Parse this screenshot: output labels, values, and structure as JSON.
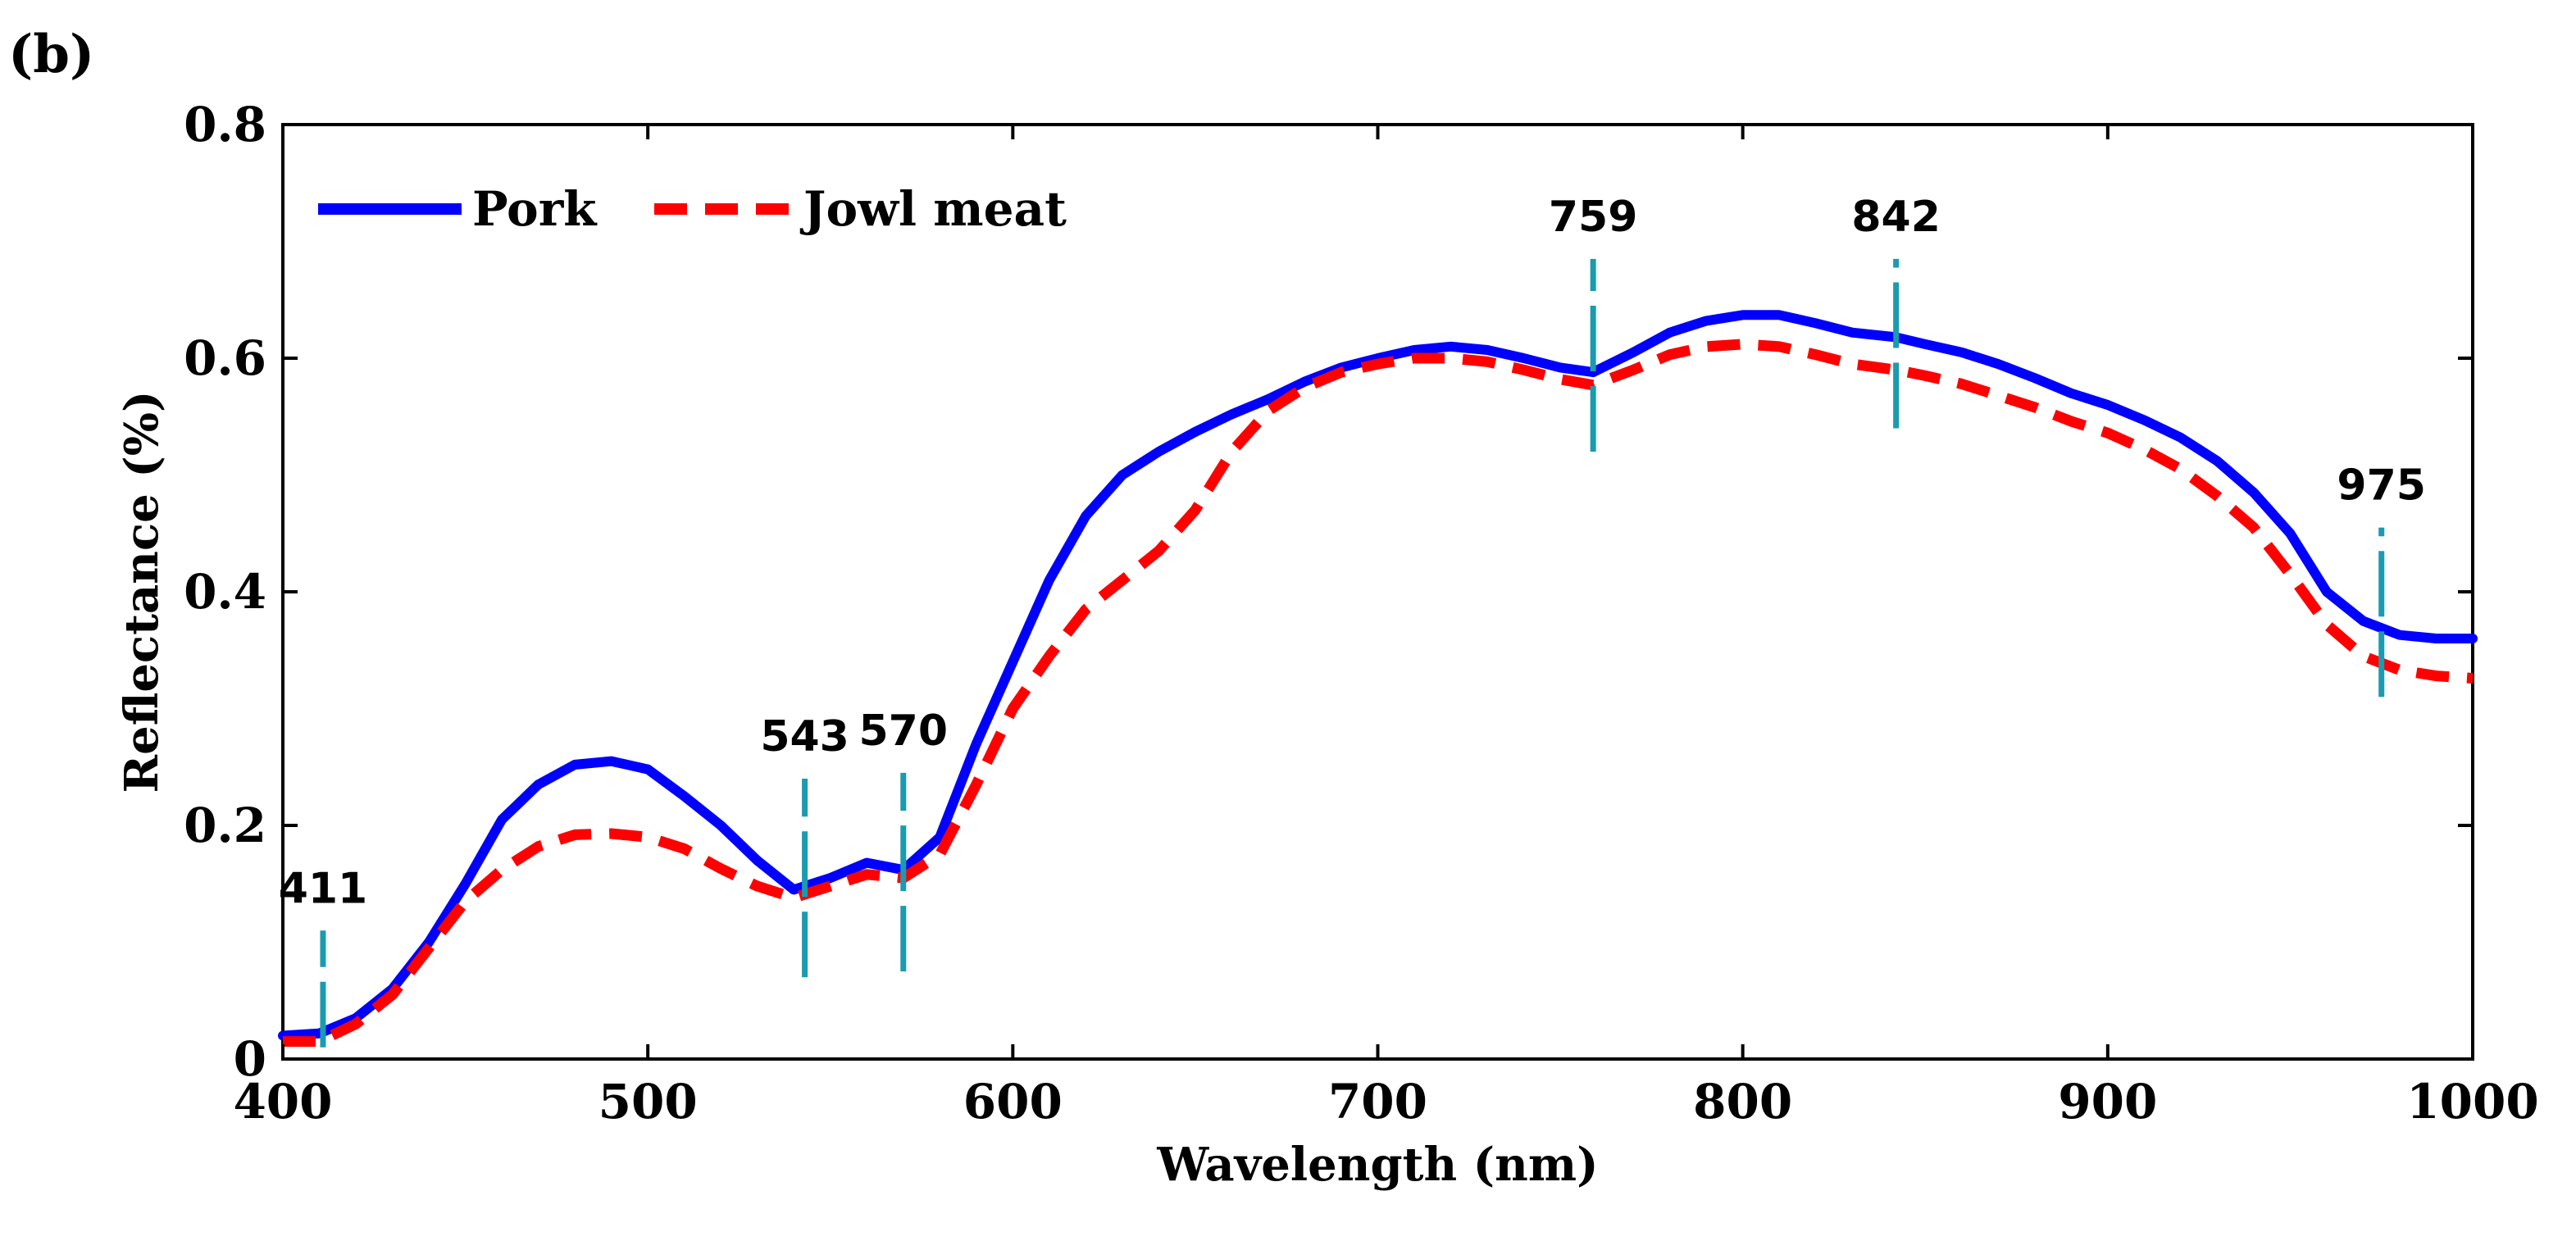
{
  "panel_label": "(b)",
  "chart_data": {
    "type": "line",
    "title": "",
    "xlabel": "Wavelength (nm)",
    "ylabel": "Reflectance (%)",
    "xlim": [
      400,
      1000
    ],
    "ylim": [
      0,
      0.8
    ],
    "xticks": [
      400,
      500,
      600,
      700,
      800,
      900,
      1000
    ],
    "xtick_labels": [
      "400",
      "500",
      "600",
      "700",
      "800",
      "900",
      "1000"
    ],
    "yticks": [
      0,
      0.2,
      0.4,
      0.6,
      0.8
    ],
    "ytick_labels": [
      "0",
      "0.2",
      "0.4",
      "0.6",
      "0.8"
    ],
    "grid": false,
    "legend_position": "top-left",
    "series": [
      {
        "name": "Pork",
        "color": "#0000ff",
        "style": "solid",
        "x": [
          400,
          410,
          420,
          430,
          440,
          450,
          460,
          470,
          480,
          490,
          500,
          510,
          520,
          530,
          540,
          550,
          560,
          570,
          580,
          590,
          600,
          610,
          620,
          630,
          640,
          650,
          660,
          670,
          680,
          690,
          700,
          710,
          720,
          730,
          740,
          750,
          759,
          770,
          780,
          790,
          800,
          810,
          820,
          830,
          842,
          850,
          860,
          870,
          880,
          890,
          900,
          910,
          920,
          930,
          940,
          950,
          960,
          970,
          980,
          990,
          1000
        ],
        "values": [
          0.02,
          0.022,
          0.035,
          0.06,
          0.1,
          0.15,
          0.205,
          0.235,
          0.252,
          0.255,
          0.248,
          0.225,
          0.2,
          0.17,
          0.145,
          0.155,
          0.168,
          0.162,
          0.19,
          0.27,
          0.34,
          0.41,
          0.465,
          0.5,
          0.52,
          0.537,
          0.552,
          0.565,
          0.58,
          0.592,
          0.6,
          0.607,
          0.61,
          0.607,
          0.6,
          0.592,
          0.588,
          0.605,
          0.622,
          0.632,
          0.637,
          0.637,
          0.63,
          0.622,
          0.618,
          0.612,
          0.605,
          0.595,
          0.583,
          0.57,
          0.56,
          0.547,
          0.532,
          0.512,
          0.485,
          0.45,
          0.4,
          0.375,
          0.363,
          0.36,
          0.36
        ]
      },
      {
        "name": "Jowl meat",
        "color": "#ff0000",
        "style": "dashed",
        "x": [
          400,
          410,
          420,
          430,
          440,
          450,
          460,
          470,
          480,
          490,
          500,
          510,
          520,
          530,
          540,
          550,
          560,
          570,
          580,
          590,
          600,
          610,
          620,
          630,
          640,
          650,
          660,
          670,
          680,
          690,
          700,
          710,
          720,
          730,
          740,
          750,
          759,
          770,
          780,
          790,
          800,
          810,
          820,
          830,
          842,
          850,
          860,
          870,
          880,
          890,
          900,
          910,
          920,
          930,
          940,
          950,
          960,
          970,
          980,
          990,
          1000
        ],
        "values": [
          0.015,
          0.015,
          0.03,
          0.055,
          0.095,
          0.135,
          0.162,
          0.182,
          0.192,
          0.193,
          0.19,
          0.18,
          0.163,
          0.148,
          0.138,
          0.148,
          0.158,
          0.155,
          0.175,
          0.235,
          0.3,
          0.345,
          0.385,
          0.41,
          0.435,
          0.47,
          0.52,
          0.555,
          0.575,
          0.588,
          0.595,
          0.6,
          0.6,
          0.597,
          0.59,
          0.582,
          0.577,
          0.59,
          0.603,
          0.61,
          0.612,
          0.61,
          0.603,
          0.595,
          0.59,
          0.585,
          0.578,
          0.568,
          0.558,
          0.546,
          0.536,
          0.522,
          0.505,
          0.482,
          0.455,
          0.415,
          0.372,
          0.345,
          0.333,
          0.328,
          0.326
        ]
      }
    ],
    "annotations": [
      {
        "label": "411",
        "x": 411,
        "y_range": [
          0.01,
          0.11
        ]
      },
      {
        "label": "543",
        "x": 543,
        "y_range": [
          0.07,
          0.24
        ]
      },
      {
        "label": "570",
        "x": 570,
        "y_range": [
          0.075,
          0.245
        ]
      },
      {
        "label": "759",
        "x": 759,
        "y_range": [
          0.52,
          0.685
        ]
      },
      {
        "label": "842",
        "x": 842,
        "y_range": [
          0.54,
          0.685
        ]
      },
      {
        "label": "975",
        "x": 975,
        "y_range": [
          0.31,
          0.455
        ]
      }
    ],
    "annotation_color": "#1a9bb0"
  }
}
